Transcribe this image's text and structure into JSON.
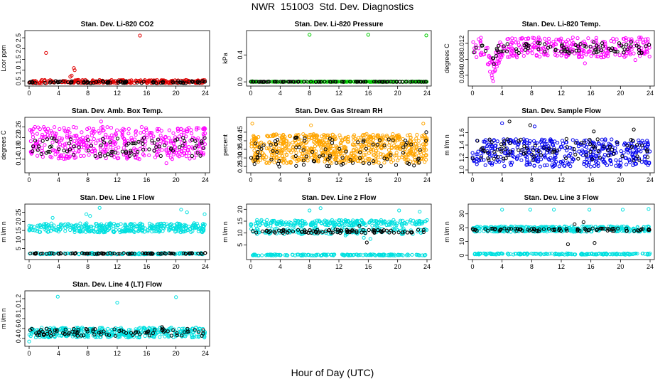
{
  "title": "NWR  151003  Std. Dev. Diagnostics",
  "xlabel": "Hour of Day (UTC)",
  "chart_data": [
    {
      "type": "scatter",
      "title": "Stan. Dev. Li-820 CO2",
      "ylabel": "Lcor ppm",
      "xlim": [
        0,
        24
      ],
      "ylim": [
        0.4,
        2.7
      ],
      "xticks": [
        "0",
        "4",
        "8",
        "12",
        "16",
        "20",
        "24"
      ],
      "yticks": [
        "0.5",
        "1.0",
        "1.5",
        "2.0",
        "2.5"
      ],
      "series": [
        {
          "color": "#e00000",
          "band": [
            0.4,
            0.55
          ],
          "n": 260,
          "seed": 11,
          "outliers": [
            [
              2.3,
              1.8
            ],
            [
              6.1,
              1.1
            ],
            [
              6.2,
              1.0
            ],
            [
              5.8,
              0.75
            ],
            [
              5.6,
              0.7
            ],
            [
              15.1,
              2.6
            ]
          ]
        },
        {
          "color": "#000000",
          "band": [
            0.4,
            0.5
          ],
          "n": 90,
          "seed": 12,
          "outliers": []
        }
      ]
    },
    {
      "type": "scatter",
      "title": "Stan. Dev. Li-820 Pressure",
      "ylabel": "kPa",
      "xlim": [
        0,
        24
      ],
      "ylim": [
        -0.02,
        0.72
      ],
      "xticks": [
        "0",
        "4",
        "8",
        "12",
        "16",
        "20",
        "24"
      ],
      "yticks": [
        "0.0",
        "0.4"
      ],
      "series": [
        {
          "color": "#00cc00",
          "band": [
            0.0,
            0.005
          ],
          "n": 220,
          "seed": 21,
          "outliers": [
            [
              8.0,
              0.7
            ],
            [
              16.0,
              0.7
            ],
            [
              23.9,
              0.69
            ],
            [
              0.2,
              0.01
            ]
          ]
        },
        {
          "color": "#000000",
          "band": [
            0.0,
            0.004
          ],
          "n": 90,
          "seed": 22,
          "outliers": []
        }
      ]
    },
    {
      "type": "scatter",
      "title": "Stan. Dev. Li-820 Temp.",
      "ylabel": "degrees C",
      "xlim": [
        0,
        24
      ],
      "ylim": [
        0.002,
        0.0145
      ],
      "xticks": [
        "0",
        "4",
        "8",
        "12",
        "16",
        "20",
        "24"
      ],
      "yticks": [
        "0.004",
        "0.008",
        "0.012"
      ],
      "series": [
        {
          "color": "#ff00ff",
          "band": [
            0.0085,
            0.0135
          ],
          "n": 320,
          "seed": 31,
          "dip": true,
          "outliers": [
            [
              2.8,
              0.0025
            ],
            [
              2.6,
              0.004
            ],
            [
              3.0,
              0.005
            ],
            [
              15.2,
              0.007
            ],
            [
              22.0,
              0.0078
            ],
            [
              6.0,
              0.0085
            ]
          ]
        },
        {
          "color": "#000000",
          "band": [
            0.0095,
            0.0125
          ],
          "n": 90,
          "seed": 32,
          "dip": true,
          "outliers": []
        }
      ]
    },
    {
      "type": "scatter",
      "title": "Stan. Dev. Amb. Box Temp.",
      "ylabel": "degrees C",
      "xlim": [
        0,
        24
      ],
      "ylim": [
        0.1,
        0.285
      ],
      "xticks": [
        "0",
        "4",
        "8",
        "12",
        "16",
        "20",
        "24"
      ],
      "yticks": [
        "0.14",
        "0.18",
        "0.22",
        "0.26"
      ],
      "series": [
        {
          "color": "#ff00ff",
          "band": [
            0.14,
            0.26
          ],
          "n": 420,
          "seed": 41,
          "outliers": [
            [
              9.8,
              0.28
            ],
            [
              18.7,
              0.125
            ]
          ]
        },
        {
          "color": "#000000",
          "band": [
            0.15,
            0.22
          ],
          "n": 90,
          "seed": 42,
          "outliers": []
        }
      ]
    },
    {
      "type": "scatter",
      "title": "Stan. Dev. Gas Stream RH",
      "ylabel": "percent",
      "xlim": [
        0,
        24
      ],
      "ylim": [
        0.23,
        0.52
      ],
      "xticks": [
        "0",
        "4",
        "8",
        "12",
        "16",
        "20",
        "24"
      ],
      "yticks": [
        "0.25",
        "0.30",
        "0.35",
        "0.40",
        "0.45"
      ],
      "series": [
        {
          "color": "#ffa500",
          "band": [
            0.27,
            0.44
          ],
          "n": 720,
          "seed": 51,
          "outliers": [
            [
              0.2,
              0.5
            ],
            [
              23.5,
              0.5
            ],
            [
              8.2,
              0.49
            ]
          ]
        },
        {
          "color": "#000000",
          "band": [
            0.25,
            0.42
          ],
          "n": 90,
          "seed": 52,
          "outliers": [
            [
              23.9,
              0.45
            ]
          ]
        }
      ]
    },
    {
      "type": "scatter",
      "title": "Stan. Dev. Sample Flow",
      "ylabel": "m l/m n",
      "xlim": [
        0,
        24
      ],
      "ylim": [
        1.0,
        1.8
      ],
      "xticks": [
        "0",
        "4",
        "8",
        "12",
        "16",
        "20",
        "24"
      ],
      "yticks": [
        "1.0",
        "1.2",
        "1.4",
        "1.6"
      ],
      "series": [
        {
          "color": "#0000ee",
          "band": [
            1.05,
            1.5
          ],
          "n": 430,
          "seed": 61,
          "outliers": [
            [
              4.0,
              1.75
            ],
            [
              8.4,
              1.7
            ]
          ]
        },
        {
          "color": "#000000",
          "band": [
            1.15,
            1.5
          ],
          "n": 90,
          "seed": 62,
          "outliers": [
            [
              5.0,
              1.78
            ],
            [
              7.8,
              1.72
            ],
            [
              16.4,
              1.62
            ],
            [
              21.8,
              1.65
            ]
          ]
        }
      ]
    },
    {
      "type": "scatter",
      "title": "Stan. Dev. Line 1 Flow",
      "ylabel": "m l/m n",
      "xlim": [
        0,
        24
      ],
      "ylim": [
        0.5,
        28
      ],
      "xticks": [
        "0",
        "4",
        "8",
        "12",
        "16",
        "20",
        "24"
      ],
      "yticks": [
        "5",
        "10",
        "15",
        "20",
        "25"
      ],
      "series": [
        {
          "color": "#00e0e0",
          "band": [
            14.0,
            19.0
          ],
          "n": 360,
          "seed": 71,
          "outliers": [
            [
              7.8,
              24
            ],
            [
              8.3,
              23
            ],
            [
              9.6,
              27.5
            ],
            [
              3.2,
              22
            ],
            [
              20.7,
              26.5
            ],
            [
              21.5,
              25
            ],
            [
              23.9,
              24
            ]
          ]
        },
        {
          "color": "#00e0e0",
          "band": [
            1.8,
            2.6
          ],
          "n": 130,
          "seed": 72,
          "outliers": []
        },
        {
          "color": "#000000",
          "band": [
            2.0,
            2.6
          ],
          "n": 90,
          "seed": 73,
          "outliers": []
        }
      ]
    },
    {
      "type": "scatter",
      "title": "Stan. Dev. Line 2 Flow",
      "ylabel": "m l/m n",
      "xlim": [
        0,
        24
      ],
      "ylim": [
        0.0,
        21
      ],
      "xticks": [
        "0",
        "4",
        "8",
        "12",
        "16",
        "20",
        "24"
      ],
      "yticks": [
        "5",
        "10",
        "15",
        "20"
      ],
      "series": [
        {
          "color": "#00e0e0",
          "band": [
            13.0,
            15.5
          ],
          "n": 240,
          "seed": 81,
          "outliers": [
            [
              8.0,
              19.5
            ],
            [
              9.5,
              20.5
            ],
            [
              12.9,
              9.0
            ],
            [
              15.4,
              8.0
            ],
            [
              16.3,
              7.5
            ],
            [
              20.2,
              19.5
            ],
            [
              23.0,
              19.0
            ]
          ]
        },
        {
          "color": "#00e0e0",
          "band": [
            9.5,
            12.0
          ],
          "n": 140,
          "seed": 82,
          "outliers": []
        },
        {
          "color": "#00e0e0",
          "band": [
            0.5,
            1.0
          ],
          "n": 160,
          "seed": 83,
          "outliers": []
        },
        {
          "color": "#000000",
          "band": [
            10.0,
            11.5
          ],
          "n": 90,
          "seed": 84,
          "outliers": [
            [
              14.8,
              13
            ],
            [
              15.8,
              6.0
            ]
          ]
        }
      ]
    },
    {
      "type": "scatter",
      "title": "Stan. Dev. Line 3 Flow",
      "ylabel": "m l/m n",
      "xlim": [
        0,
        24
      ],
      "ylim": [
        -1,
        35
      ],
      "xticks": [
        "0",
        "4",
        "8",
        "12",
        "16",
        "20",
        "24"
      ],
      "yticks": [
        "0",
        "10",
        "20",
        "30"
      ],
      "series": [
        {
          "color": "#00e0e0",
          "band": [
            17.0,
            21.0
          ],
          "n": 360,
          "seed": 91,
          "outliers": [
            [
              4.0,
              33
            ],
            [
              7.8,
              33
            ],
            [
              11.0,
              33
            ],
            [
              15.8,
              33
            ],
            [
              20.3,
              33
            ],
            [
              23.8,
              33.5
            ]
          ]
        },
        {
          "color": "#00e0e0",
          "band": [
            0.5,
            1.5
          ],
          "n": 180,
          "seed": 92,
          "outliers": []
        },
        {
          "color": "#000000",
          "band": [
            17.5,
            19.5
          ],
          "n": 90,
          "seed": 93,
          "outliers": [
            [
              12.9,
              8.0
            ],
            [
              15.0,
              24
            ],
            [
              16.5,
              9.0
            ],
            [
              13.8,
              22.5
            ]
          ]
        }
      ]
    },
    {
      "type": "scatter",
      "title": "Stan. Dev. Line 4 (LT) Flow",
      "ylabel": "m l/m n",
      "xlim": [
        0,
        24
      ],
      "ylim": [
        0.3,
        1.3
      ],
      "xticks": [
        "0",
        "4",
        "8",
        "12",
        "16",
        "20",
        "24"
      ],
      "yticks": [
        "0.4",
        "0.6",
        "0.8",
        "1.0",
        "1.2"
      ],
      "series": [
        {
          "color": "#00e0e0",
          "band": [
            0.42,
            0.62
          ],
          "n": 420,
          "seed": 101,
          "outliers": [
            [
              3.9,
              1.24
            ],
            [
              12.0,
              1.12
            ],
            [
              20.0,
              1.23
            ],
            [
              0.0,
              0.34
            ]
          ]
        },
        {
          "color": "#000000",
          "band": [
            0.45,
            0.6
          ],
          "n": 90,
          "seed": 102,
          "outliers": [
            [
              18.1,
              0.63
            ]
          ]
        }
      ]
    }
  ]
}
